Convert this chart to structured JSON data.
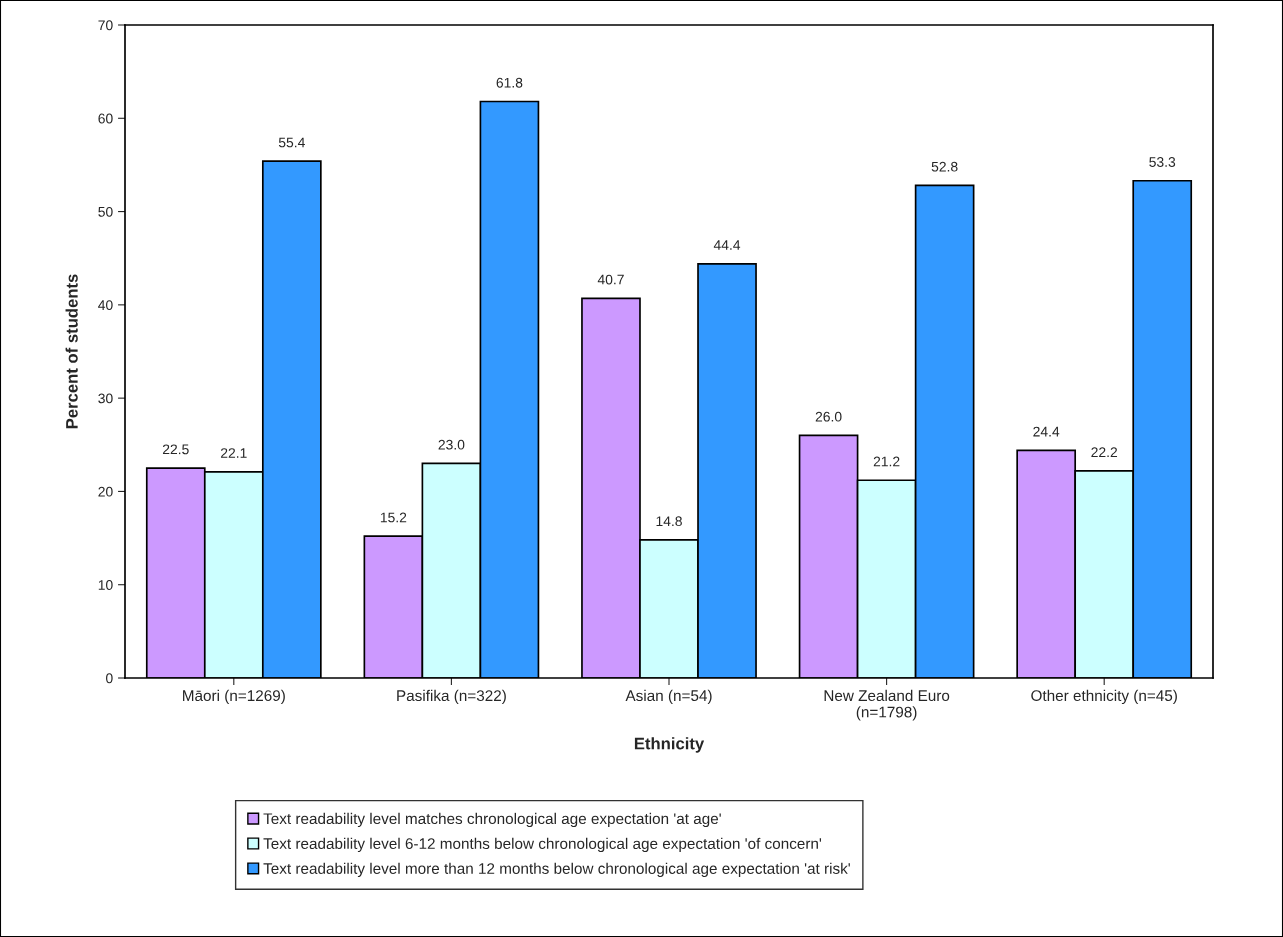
{
  "chart_data": {
    "type": "bar",
    "xlabel": "Ethnicity",
    "ylabel": "Percent of students",
    "categories": [
      "Māori (n=1269)",
      "Pasifika (n=322)",
      "Asian (n=54)",
      "New Zealand Euro\n(n=1798)",
      "Other ethnicity (n=45)"
    ],
    "series": [
      {
        "name": "Text readability level matches chronological age expectation 'at age'",
        "color": "#cc99ff",
        "values": [
          22.5,
          15.2,
          40.7,
          26.0,
          24.4
        ],
        "value_labels": [
          "22.5",
          "15.2",
          "40.7",
          "26.0",
          "24.4"
        ]
      },
      {
        "name": "Text readability level 6-12 months below chronological age expectation 'of concern'",
        "color": "#ccffff",
        "values": [
          22.1,
          23.0,
          14.8,
          21.2,
          22.2
        ],
        "value_labels": [
          "22.1",
          "23.0",
          "14.8",
          "21.2",
          "22.2"
        ]
      },
      {
        "name": "Text readability level more than 12 months below chronological age expectation 'at risk'",
        "color": "#3399ff",
        "values": [
          55.4,
          61.8,
          44.4,
          52.8,
          53.3
        ],
        "value_labels": [
          "55.4",
          "61.8",
          "44.4",
          "52.8",
          "53.3"
        ]
      }
    ],
    "ylim": [
      0,
      70
    ],
    "yticks": [
      0,
      10,
      20,
      30,
      40,
      50,
      60,
      70
    ],
    "legend": "bottom",
    "grid": false
  }
}
